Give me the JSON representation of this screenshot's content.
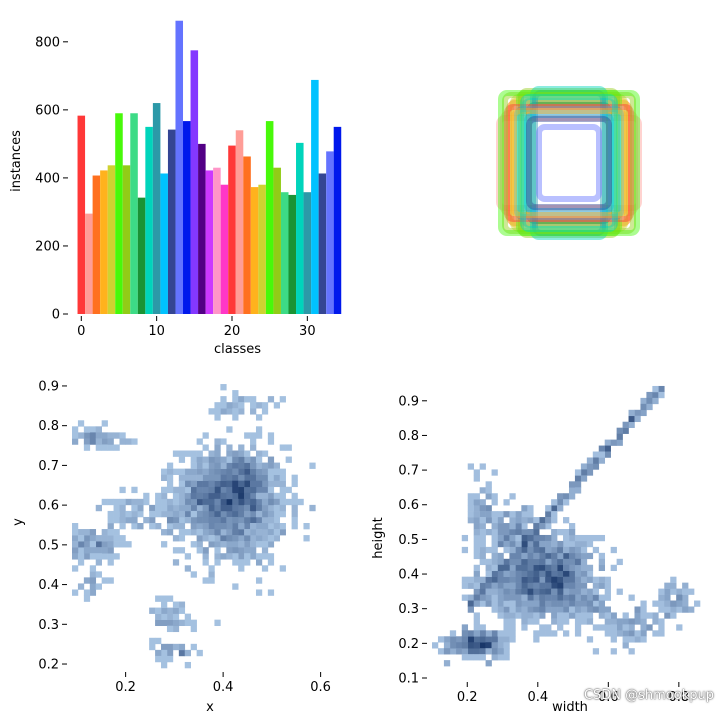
{
  "watermark": "CSDN @shmookpup",
  "chart_data": [
    {
      "type": "bar",
      "xlabel": "classes",
      "ylabel": "instances",
      "xticks": [
        0,
        10,
        20,
        30
      ],
      "yticks": [
        0,
        200,
        400,
        600,
        800
      ],
      "xlim": [
        -1.5,
        35
      ],
      "ylim": [
        0,
        870
      ],
      "categories": [
        0,
        1,
        2,
        3,
        4,
        5,
        6,
        7,
        8,
        9,
        10,
        11,
        12,
        13,
        14,
        15,
        16,
        17,
        18,
        19,
        20,
        21,
        22,
        23,
        24,
        25,
        26,
        27,
        28,
        29,
        30,
        31,
        32,
        33,
        34
      ],
      "values": [
        583,
        295,
        407,
        422,
        437,
        590,
        437,
        590,
        342,
        550,
        620,
        413,
        542,
        862,
        567,
        775,
        500,
        422,
        430,
        380,
        495,
        540,
        463,
        373,
        380,
        567,
        430,
        358,
        350,
        503,
        358,
        688,
        413,
        478,
        550
      ],
      "colors": [
        "#ff3838",
        "#ff9d97",
        "#ff701f",
        "#ffb21d",
        "#cfd231",
        "#48f90a",
        "#92cc17",
        "#3ddb86",
        "#1a9334",
        "#00d4bb",
        "#2c99a8",
        "#00c2ff",
        "#344593",
        "#6473ff",
        "#0018ec",
        "#8438ff",
        "#520085",
        "#cb38ff",
        "#ff95c8",
        "#ff37c7",
        "#ff3838",
        "#ff9d97",
        "#ff701f",
        "#ffb21d",
        "#cfd231",
        "#48f90a",
        "#92cc17",
        "#3ddb86",
        "#1a9334",
        "#00d4bb",
        "#2c99a8",
        "#00c2ff",
        "#344593",
        "#6473ff",
        "#0018ec"
      ]
    },
    {
      "type": "boxes",
      "boxes": [
        {
          "w": 0.7,
          "h": 0.45,
          "c": "#ff9d97"
        },
        {
          "w": 0.66,
          "h": 0.5,
          "c": "#ff9d97"
        },
        {
          "w": 0.6,
          "h": 0.6,
          "c": "#ff701f"
        },
        {
          "w": 0.58,
          "h": 0.62,
          "c": "#ffb21d"
        },
        {
          "w": 0.56,
          "h": 0.66,
          "c": "#cfd231"
        },
        {
          "w": 0.5,
          "h": 0.7,
          "c": "#48f90a"
        },
        {
          "w": 0.48,
          "h": 0.72,
          "c": "#92cc17"
        },
        {
          "w": 0.45,
          "h": 0.62,
          "c": "#3ddb86"
        },
        {
          "w": 0.4,
          "h": 0.58,
          "c": "#1a9334"
        },
        {
          "w": 0.36,
          "h": 0.74,
          "c": "#00d4bb"
        },
        {
          "w": 0.34,
          "h": 0.7,
          "c": "#2c99a8"
        },
        {
          "w": 0.52,
          "h": 0.54,
          "c": "#00c2ff"
        },
        {
          "w": 0.42,
          "h": 0.48,
          "c": "#00c2ff"
        },
        {
          "w": 0.4,
          "h": 0.44,
          "c": "#344593"
        },
        {
          "w": 0.3,
          "h": 0.36,
          "c": "#6473ff"
        },
        {
          "w": 0.62,
          "h": 0.56,
          "c": "#ff3838"
        },
        {
          "w": 0.55,
          "h": 0.52,
          "c": "#ffb21d"
        },
        {
          "w": 0.64,
          "h": 0.68,
          "c": "#92cc17"
        },
        {
          "w": 0.68,
          "h": 0.7,
          "c": "#48f90a"
        },
        {
          "w": 0.46,
          "h": 0.66,
          "c": "#00d4bb"
        }
      ]
    },
    {
      "type": "heatmap",
      "xlabel": "x",
      "ylabel": "y",
      "xticks": [
        0.2,
        0.4,
        0.6
      ],
      "yticks": [
        0.2,
        0.3,
        0.4,
        0.5,
        0.6,
        0.7,
        0.8,
        0.9
      ],
      "xlim": [
        0.09,
        0.65
      ],
      "ylim": [
        0.19,
        0.92
      ],
      "clusters": [
        {
          "cx": 0.42,
          "cy": 0.6,
          "sx": 0.055,
          "sy": 0.075,
          "n": 1100
        },
        {
          "cx": 0.44,
          "cy": 0.65,
          "sx": 0.025,
          "sy": 0.035,
          "n": 260
        },
        {
          "cx": 0.37,
          "cy": 0.63,
          "sx": 0.025,
          "sy": 0.035,
          "n": 200
        },
        {
          "cx": 0.13,
          "cy": 0.5,
          "sx": 0.03,
          "sy": 0.02,
          "n": 120
        },
        {
          "cx": 0.14,
          "cy": 0.77,
          "sx": 0.03,
          "sy": 0.012,
          "n": 70
        },
        {
          "cx": 0.21,
          "cy": 0.58,
          "sx": 0.03,
          "sy": 0.02,
          "n": 60
        },
        {
          "cx": 0.29,
          "cy": 0.32,
          "sx": 0.02,
          "sy": 0.03,
          "n": 50
        },
        {
          "cx": 0.3,
          "cy": 0.23,
          "sx": 0.02,
          "sy": 0.012,
          "n": 40
        },
        {
          "cx": 0.13,
          "cy": 0.4,
          "sx": 0.015,
          "sy": 0.02,
          "n": 25
        },
        {
          "cx": 0.44,
          "cy": 0.85,
          "sx": 0.03,
          "sy": 0.015,
          "n": 40
        },
        {
          "cx": 0.3,
          "cy": 0.6,
          "sx": 0.02,
          "sy": 0.04,
          "n": 40
        }
      ]
    },
    {
      "type": "heatmap",
      "xlabel": "width",
      "ylabel": "height",
      "xticks": [
        0.2,
        0.4,
        0.6,
        0.8
      ],
      "yticks": [
        0.1,
        0.2,
        0.3,
        0.4,
        0.5,
        0.6,
        0.7,
        0.8,
        0.9
      ],
      "xlim": [
        0.1,
        0.86
      ],
      "ylim": [
        0.1,
        0.96
      ],
      "line": {
        "x0": 0.2,
        "y0": 0.3,
        "x1": 0.75,
        "y1": 0.94,
        "n": 360
      },
      "clusters": [
        {
          "cx": 0.4,
          "cy": 0.38,
          "sx": 0.08,
          "sy": 0.06,
          "n": 900
        },
        {
          "cx": 0.46,
          "cy": 0.42,
          "sx": 0.045,
          "sy": 0.05,
          "n": 250
        },
        {
          "cx": 0.22,
          "cy": 0.2,
          "sx": 0.04,
          "sy": 0.02,
          "n": 260
        },
        {
          "cx": 0.34,
          "cy": 0.52,
          "sx": 0.035,
          "sy": 0.04,
          "n": 140
        },
        {
          "cx": 0.24,
          "cy": 0.58,
          "sx": 0.02,
          "sy": 0.06,
          "n": 70
        },
        {
          "cx": 0.66,
          "cy": 0.26,
          "sx": 0.04,
          "sy": 0.03,
          "n": 80
        },
        {
          "cx": 0.79,
          "cy": 0.33,
          "sx": 0.03,
          "sy": 0.03,
          "n": 60
        },
        {
          "cx": 0.56,
          "cy": 0.3,
          "sx": 0.03,
          "sy": 0.05,
          "n": 60
        }
      ]
    }
  ]
}
